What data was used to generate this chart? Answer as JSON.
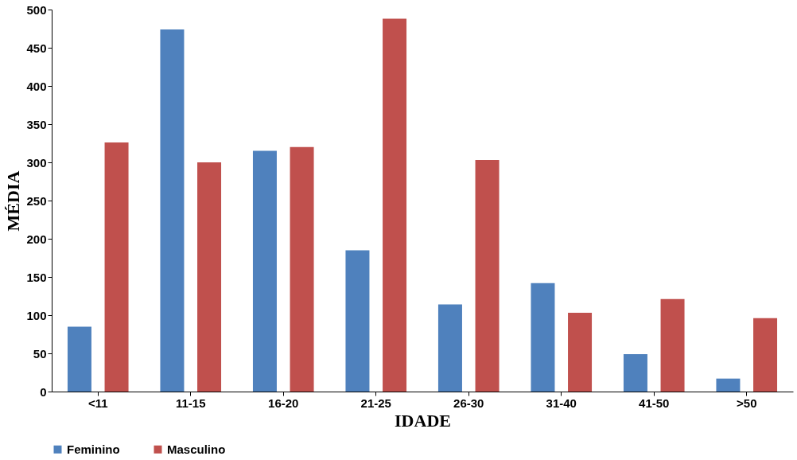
{
  "chart_data": {
    "type": "bar",
    "xlabel": "IDADE",
    "ylabel": "MÉDIA",
    "categories": [
      "<11",
      "11-15",
      "16-20",
      "21-25",
      "26-30",
      "31-40",
      "41-50",
      ">50"
    ],
    "series": [
      {
        "name": "Feminino",
        "color": "#4f81bd",
        "values": [
          85,
          474,
          315,
          185,
          114,
          142,
          49,
          17
        ]
      },
      {
        "name": "Masculino",
        "color": "#c0504d",
        "values": [
          326,
          300,
          320,
          488,
          303,
          103,
          121,
          96
        ]
      }
    ],
    "ylim": [
      0,
      500
    ],
    "yticks": [
      0,
      50,
      100,
      150,
      200,
      250,
      300,
      350,
      400,
      450,
      500
    ],
    "grid": false,
    "legend": "bottom"
  }
}
